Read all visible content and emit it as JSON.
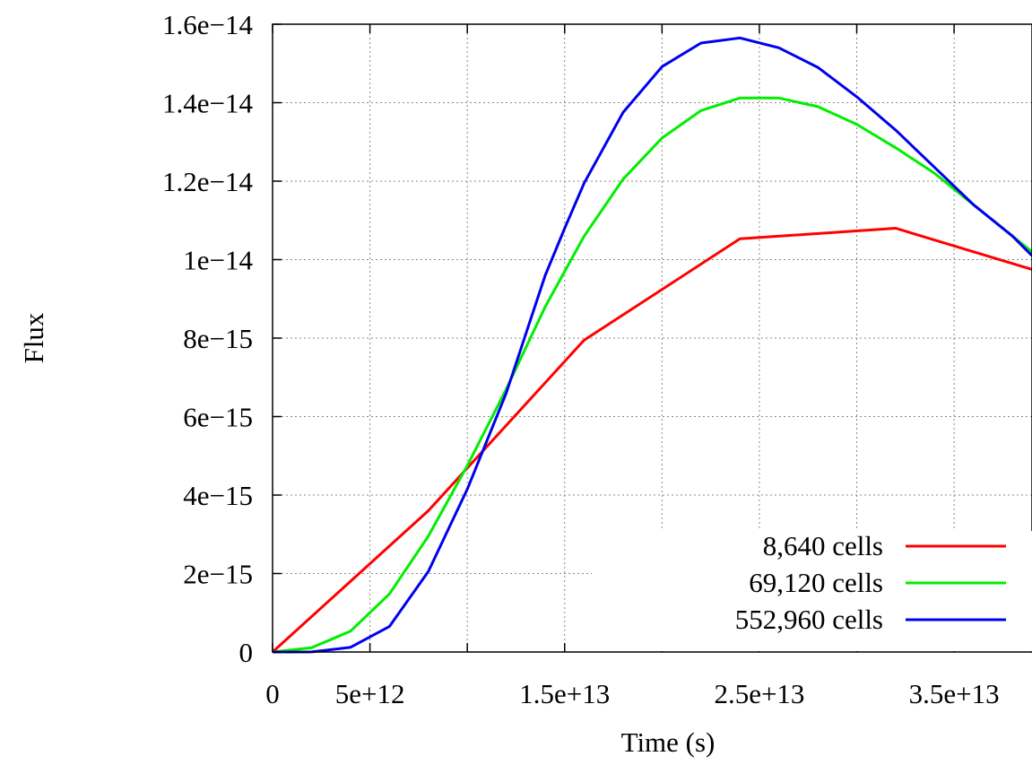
{
  "chart_data": {
    "type": "line",
    "title": "",
    "xlabel": "Time (s)",
    "ylabel": "Flux",
    "xlim": [
      0,
      39000000000000.0
    ],
    "ylim": [
      0,
      1.6e-14
    ],
    "grid": true,
    "legend_position": "bottom-right",
    "x_ticks": [
      {
        "value": 0,
        "label": "0"
      },
      {
        "value": 5000000000000.0,
        "label": "5e+12"
      },
      {
        "value": 10000000000000.0,
        "label": ""
      },
      {
        "value": 15000000000000.0,
        "label": "1.5e+13"
      },
      {
        "value": 20000000000000.0,
        "label": ""
      },
      {
        "value": 25000000000000.0,
        "label": "2.5e+13"
      },
      {
        "value": 30000000000000.0,
        "label": ""
      },
      {
        "value": 35000000000000.0,
        "label": "3.5e+13"
      }
    ],
    "y_ticks": [
      {
        "value": 0,
        "label": "0"
      },
      {
        "value": 2e-15,
        "label": "2e−15"
      },
      {
        "value": 4e-15,
        "label": "4e−15"
      },
      {
        "value": 6e-15,
        "label": "6e−15"
      },
      {
        "value": 8e-15,
        "label": "8e−15"
      },
      {
        "value": 1e-14,
        "label": "1e−14"
      },
      {
        "value": 1.2e-14,
        "label": "1.2e−14"
      },
      {
        "value": 1.4e-14,
        "label": "1.4e−14"
      },
      {
        "value": 1.6e-14,
        "label": "1.6e−14"
      }
    ],
    "series": [
      {
        "name": "8,640 cells",
        "color": "#ff0000",
        "x": [
          0,
          8000000000000.0,
          16000000000000.0,
          24000000000000.0,
          32000000000000.0,
          39000000000000.0
        ],
        "y": [
          0,
          3.6e-15,
          7.95e-15,
          1.053e-14,
          1.08e-14,
          9.75e-15
        ]
      },
      {
        "name": "69,120 cells",
        "color": "#00ee00",
        "x": [
          0,
          2000000000000.0,
          4000000000000.0,
          6000000000000.0,
          8000000000000.0,
          10000000000000.0,
          12000000000000.0,
          14000000000000.0,
          16000000000000.0,
          18000000000000.0,
          20000000000000.0,
          22000000000000.0,
          24000000000000.0,
          26000000000000.0,
          28000000000000.0,
          30000000000000.0,
          32000000000000.0,
          34000000000000.0,
          36000000000000.0,
          38000000000000.0,
          39000000000000.0
        ],
        "y": [
          0,
          1.1e-16,
          5.3e-16,
          1.48e-15,
          2.95e-15,
          4.75e-15,
          6.7e-15,
          8.8e-15,
          1.06e-14,
          1.205e-14,
          1.31e-14,
          1.38e-14,
          1.412e-14,
          1.412e-14,
          1.39e-14,
          1.345e-14,
          1.285e-14,
          1.22e-14,
          1.14e-14,
          1.06e-14,
          1.02e-14
        ]
      },
      {
        "name": "552,960 cells",
        "color": "#0000ee",
        "x": [
          0,
          2000000000000.0,
          4000000000000.0,
          6000000000000.0,
          8000000000000.0,
          10000000000000.0,
          12000000000000.0,
          14000000000000.0,
          15000000000000.0,
          16000000000000.0,
          18000000000000.0,
          20000000000000.0,
          22000000000000.0,
          24000000000000.0,
          26000000000000.0,
          28000000000000.0,
          30000000000000.0,
          32000000000000.0,
          34000000000000.0,
          36000000000000.0,
          38000000000000.0,
          39000000000000.0
        ],
        "y": [
          0,
          2e-18,
          1.2e-16,
          6.5e-16,
          2.05e-15,
          4.15e-15,
          6.6e-15,
          9.6e-15,
          1.08e-14,
          1.195e-14,
          1.375e-14,
          1.492e-14,
          1.552e-14,
          1.565e-14,
          1.54e-14,
          1.49e-14,
          1.415e-14,
          1.33e-14,
          1.235e-14,
          1.14e-14,
          1.06e-14,
          1.01e-14
        ]
      }
    ]
  }
}
